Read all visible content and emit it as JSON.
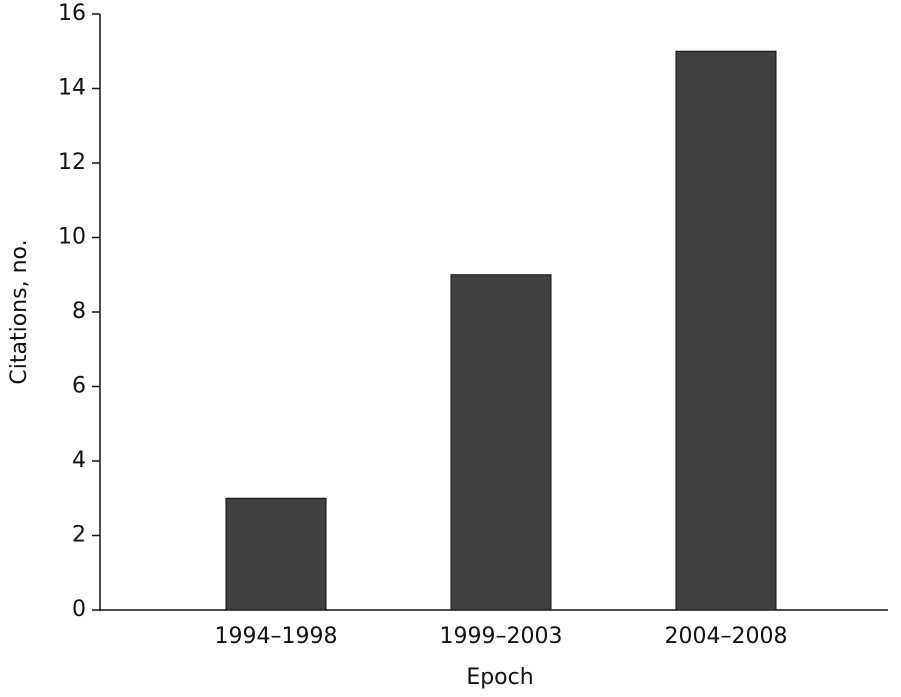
{
  "chart_data": {
    "type": "bar",
    "x_label": "Epoch",
    "y_label": "Citations, no.",
    "categories": [
      "1994–1998",
      "1999–2003",
      "2004–2008"
    ],
    "values": [
      3,
      9,
      15
    ],
    "color": "#404040",
    "ylim": [
      0,
      16
    ],
    "yticks": [
      0,
      2,
      4,
      6,
      8,
      10,
      12,
      14,
      16
    ]
  }
}
